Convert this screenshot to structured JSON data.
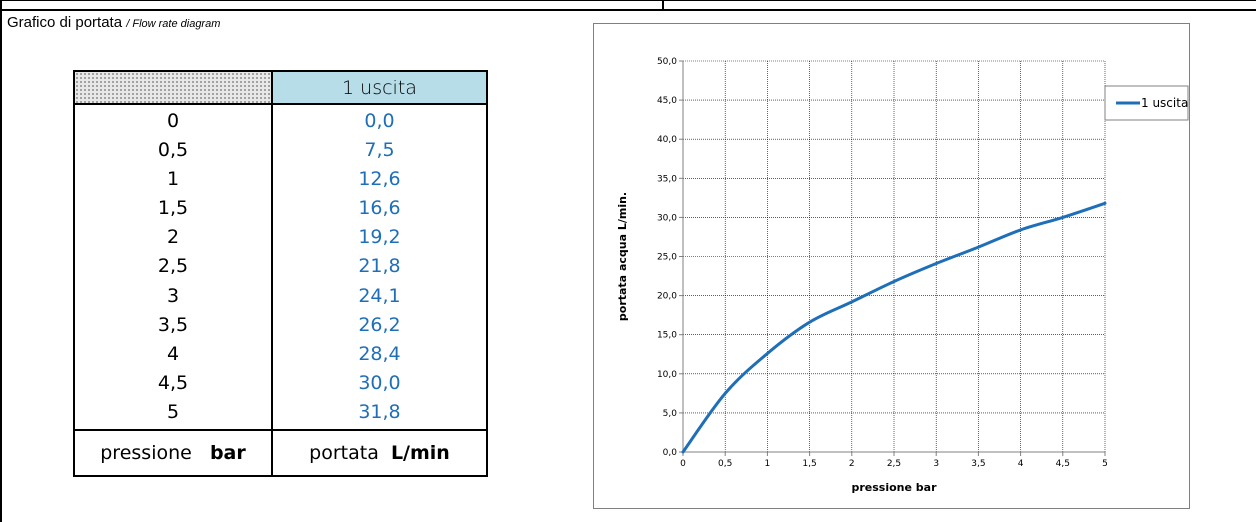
{
  "heading": {
    "title": "Grafico di portata",
    "subtitle": "/ Flow rate diagram"
  },
  "table": {
    "column_header": "1 uscita",
    "rows": [
      {
        "pressure": "0",
        "flow": "0,0"
      },
      {
        "pressure": "0,5",
        "flow": "7,5"
      },
      {
        "pressure": "1",
        "flow": "12,6"
      },
      {
        "pressure": "1,5",
        "flow": "16,6"
      },
      {
        "pressure": "2",
        "flow": "19,2"
      },
      {
        "pressure": "2,5",
        "flow": "21,8"
      },
      {
        "pressure": "3",
        "flow": "24,1"
      },
      {
        "pressure": "3,5",
        "flow": "26,2"
      },
      {
        "pressure": "4",
        "flow": "28,4"
      },
      {
        "pressure": "4,5",
        "flow": "30,0"
      },
      {
        "pressure": "5",
        "flow": "31,8"
      }
    ],
    "footer_left_text": "pressione",
    "footer_left_unit": "bar",
    "footer_right_text": "portata",
    "footer_right_unit": "L/min"
  },
  "colors": {
    "series": "#1f6fb8",
    "table_header": "#b7dde8"
  },
  "chart_data": {
    "type": "line",
    "title": "",
    "xlabel": "pressione bar",
    "ylabel": "portata acqua L/min.",
    "xlim": [
      0,
      5
    ],
    "ylim": [
      0,
      50
    ],
    "x_ticks": [
      "0",
      "0,5",
      "1",
      "1,5",
      "2",
      "2,5",
      "3",
      "3,5",
      "4",
      "4,5",
      "5"
    ],
    "y_ticks": [
      "0,0",
      "5,0",
      "10,0",
      "15,0",
      "20,0",
      "25,0",
      "30,0",
      "35,0",
      "40,0",
      "45,0",
      "50,0"
    ],
    "grid": true,
    "legend": "right",
    "series": [
      {
        "name": "1 uscita",
        "x": [
          0,
          0.5,
          1,
          1.5,
          2,
          2.5,
          3,
          3.5,
          4,
          4.5,
          5
        ],
        "values": [
          0.0,
          7.5,
          12.6,
          16.6,
          19.2,
          21.8,
          24.1,
          26.2,
          28.4,
          30.0,
          31.8
        ]
      }
    ]
  }
}
